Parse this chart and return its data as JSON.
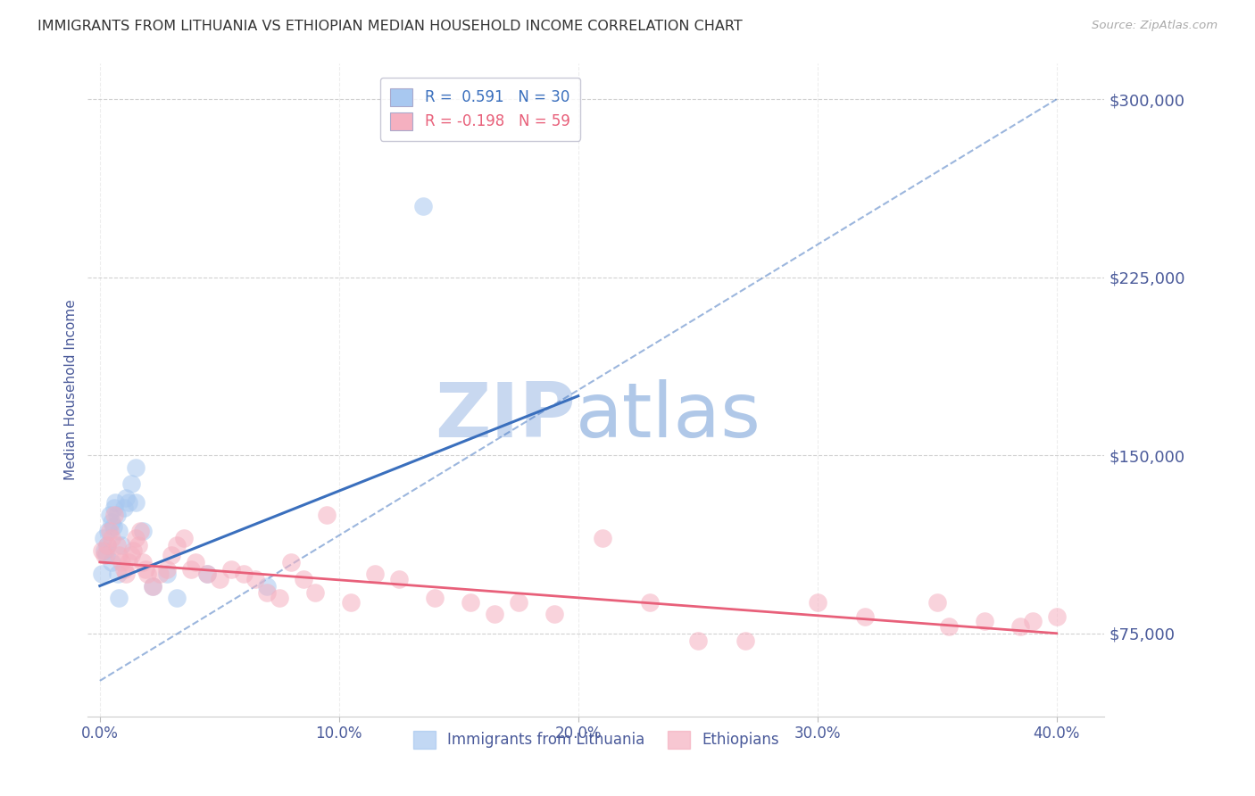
{
  "title": "IMMIGRANTS FROM LITHUANIA VS ETHIOPIAN MEDIAN HOUSEHOLD INCOME CORRELATION CHART",
  "source": "Source: ZipAtlas.com",
  "ylabel": "Median Household Income",
  "xlabel_ticks": [
    "0.0%",
    "10.0%",
    "20.0%",
    "30.0%",
    "40.0%"
  ],
  "xlabel_vals": [
    0.0,
    10.0,
    20.0,
    30.0,
    40.0
  ],
  "ytick_labels": [
    "$75,000",
    "$150,000",
    "$225,000",
    "$300,000"
  ],
  "ytick_vals": [
    75000,
    150000,
    225000,
    300000
  ],
  "ylim": [
    40000,
    315000
  ],
  "xlim": [
    -0.5,
    42.0
  ],
  "legend_labels": [
    "Immigrants from Lithuania",
    "Ethiopians"
  ],
  "R_blue": 0.591,
  "N_blue": 30,
  "R_pink": -0.198,
  "N_pink": 59,
  "blue_color": "#a8c8f0",
  "pink_color": "#f5b0c0",
  "blue_line_color": "#3a6fbd",
  "pink_line_color": "#e8607a",
  "title_color": "#333333",
  "axis_label_color": "#4a5a9a",
  "watermark_zip_color": "#c8d8f0",
  "watermark_atlas_color": "#b0c8e8",
  "background_color": "#ffffff",
  "lithuania_x": [
    0.1,
    0.15,
    0.2,
    0.25,
    0.3,
    0.35,
    0.4,
    0.5,
    0.55,
    0.6,
    0.65,
    0.7,
    0.75,
    0.8,
    0.9,
    1.0,
    1.1,
    1.2,
    1.3,
    1.5,
    1.8,
    2.2,
    2.8,
    3.2,
    4.5,
    7.0,
    1.5,
    0.5,
    13.5,
    0.8
  ],
  "lithuania_y": [
    100000,
    115000,
    110000,
    108000,
    112000,
    118000,
    125000,
    122000,
    120000,
    128000,
    130000,
    125000,
    100000,
    118000,
    112000,
    128000,
    132000,
    130000,
    138000,
    145000,
    118000,
    95000,
    100000,
    90000,
    100000,
    95000,
    130000,
    105000,
    255000,
    90000
  ],
  "ethiopian_x": [
    0.1,
    0.2,
    0.3,
    0.4,
    0.5,
    0.6,
    0.7,
    0.8,
    0.9,
    1.0,
    1.1,
    1.2,
    1.3,
    1.4,
    1.5,
    1.6,
    1.7,
    1.8,
    1.9,
    2.0,
    2.2,
    2.5,
    2.8,
    3.0,
    3.2,
    3.5,
    3.8,
    4.0,
    4.5,
    5.0,
    5.5,
    6.0,
    6.5,
    7.0,
    7.5,
    8.0,
    8.5,
    9.0,
    9.5,
    10.5,
    11.5,
    12.5,
    14.0,
    15.5,
    16.5,
    17.5,
    19.0,
    21.0,
    23.0,
    25.0,
    27.0,
    30.0,
    32.0,
    35.0,
    37.0,
    38.5,
    39.0,
    40.0,
    35.5
  ],
  "ethiopian_y": [
    110000,
    108000,
    112000,
    118000,
    115000,
    125000,
    112000,
    108000,
    105000,
    102000,
    100000,
    105000,
    108000,
    110000,
    115000,
    112000,
    118000,
    105000,
    102000,
    100000,
    95000,
    100000,
    102000,
    108000,
    112000,
    115000,
    102000,
    105000,
    100000,
    98000,
    102000,
    100000,
    98000,
    92000,
    90000,
    105000,
    98000,
    92000,
    125000,
    88000,
    100000,
    98000,
    90000,
    88000,
    83000,
    88000,
    83000,
    115000,
    88000,
    72000,
    72000,
    88000,
    82000,
    88000,
    80000,
    78000,
    80000,
    82000,
    78000
  ],
  "blue_line_x0": 0.0,
  "blue_line_y0": 95000,
  "blue_line_x1": 20.0,
  "blue_line_y1": 175000,
  "pink_line_x0": 0.0,
  "pink_line_y0": 105000,
  "pink_line_x1": 40.0,
  "pink_line_y1": 75000,
  "dash_line_x0": 0.0,
  "dash_line_y0": 55000,
  "dash_line_x1": 40.0,
  "dash_line_y1": 300000
}
